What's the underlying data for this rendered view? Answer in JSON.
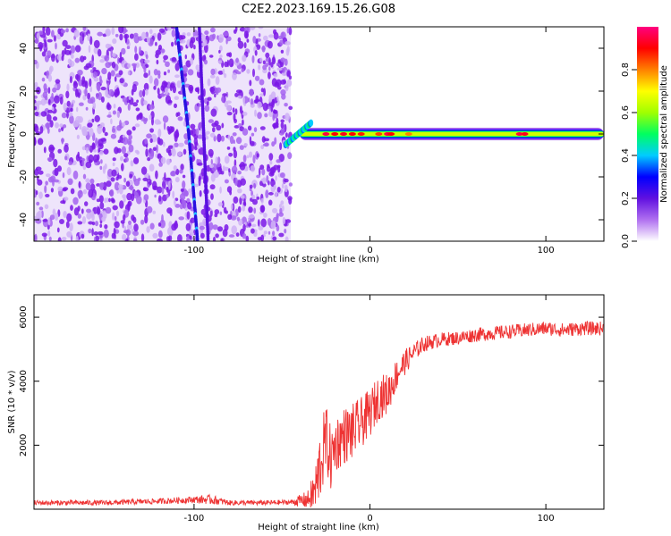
{
  "chart_data": [
    {
      "type": "heatmap",
      "title": "C2E2.2023.169.15.26.G08",
      "xlabel": "Height of straight line (km)",
      "ylabel": "Frequency (Hz)",
      "xlim": [
        -191,
        133
      ],
      "ylim": [
        -50,
        50
      ],
      "xticks": [
        -100,
        0,
        100
      ],
      "yticks": [
        -40,
        -20,
        0,
        20,
        40
      ],
      "colorbar": {
        "label": "Normalized spectral amplitude",
        "range": [
          0,
          1
        ],
        "ticks": [
          0.0,
          0.2,
          0.4,
          0.6,
          0.8
        ],
        "colormap": [
          "#ffffff",
          "#b070f0",
          "#6010e0",
          "#0000ff",
          "#00ccff",
          "#00ff60",
          "#a0ff00",
          "#ffff00",
          "#ff8000",
          "#ff0000",
          "#ff0080"
        ]
      },
      "features": [
        {
          "label": "diffuse noise",
          "x_range": [
            -191,
            -45
          ],
          "f_range": [
            -50,
            50
          ],
          "amplitude": 0.1
        },
        {
          "label": "steep streak A",
          "points": [
            [
              -110,
              50
            ],
            [
              -103,
              0
            ],
            [
              -98,
              -50
            ]
          ],
          "amplitude": 0.25
        },
        {
          "label": "steep streak B",
          "points": [
            [
              -97,
              50
            ],
            [
              -92,
              -50
            ]
          ],
          "amplitude": 0.12
        },
        {
          "label": "carrier line",
          "x_range": [
            -48,
            133
          ],
          "f_center": 0,
          "peak_amplitude": 1.0
        }
      ]
    },
    {
      "type": "line",
      "xlabel": "Height of straight line (km)",
      "ylabel": "SNR (10 * v/v)",
      "xlim": [
        -191,
        133
      ],
      "ylim": [
        0,
        6700
      ],
      "xticks": [
        -100,
        0,
        100
      ],
      "yticks": [
        2000,
        4000,
        6000
      ],
      "color": "#ee3333",
      "series": [
        {
          "x": [
            -191,
            -150,
            -120,
            -100,
            -90,
            -80,
            -60,
            -45,
            -35,
            -31,
            -28,
            -25,
            -22,
            -20,
            -15,
            -10,
            -5,
            0,
            5,
            10,
            15,
            20,
            25,
            30,
            40,
            50,
            60,
            70,
            80,
            90,
            100,
            110,
            120,
            133
          ],
          "y": [
            200,
            200,
            250,
            300,
            300,
            200,
            200,
            220,
            300,
            600,
            1500,
            2200,
            1500,
            2000,
            2300,
            2400,
            2700,
            3000,
            3500,
            3600,
            4200,
            4600,
            4900,
            5150,
            5300,
            5350,
            5450,
            5500,
            5550,
            5600,
            5650,
            5600,
            5650,
            5650
          ],
          "noise": [
            80,
            80,
            90,
            110,
            150,
            80,
            80,
            80,
            300,
            800,
            1200,
            1100,
            1000,
            900,
            900,
            900,
            800,
            750,
            700,
            650,
            500,
            400,
            300,
            250,
            220,
            220,
            220,
            220,
            220,
            220,
            220,
            220,
            220,
            220
          ]
        }
      ]
    }
  ]
}
